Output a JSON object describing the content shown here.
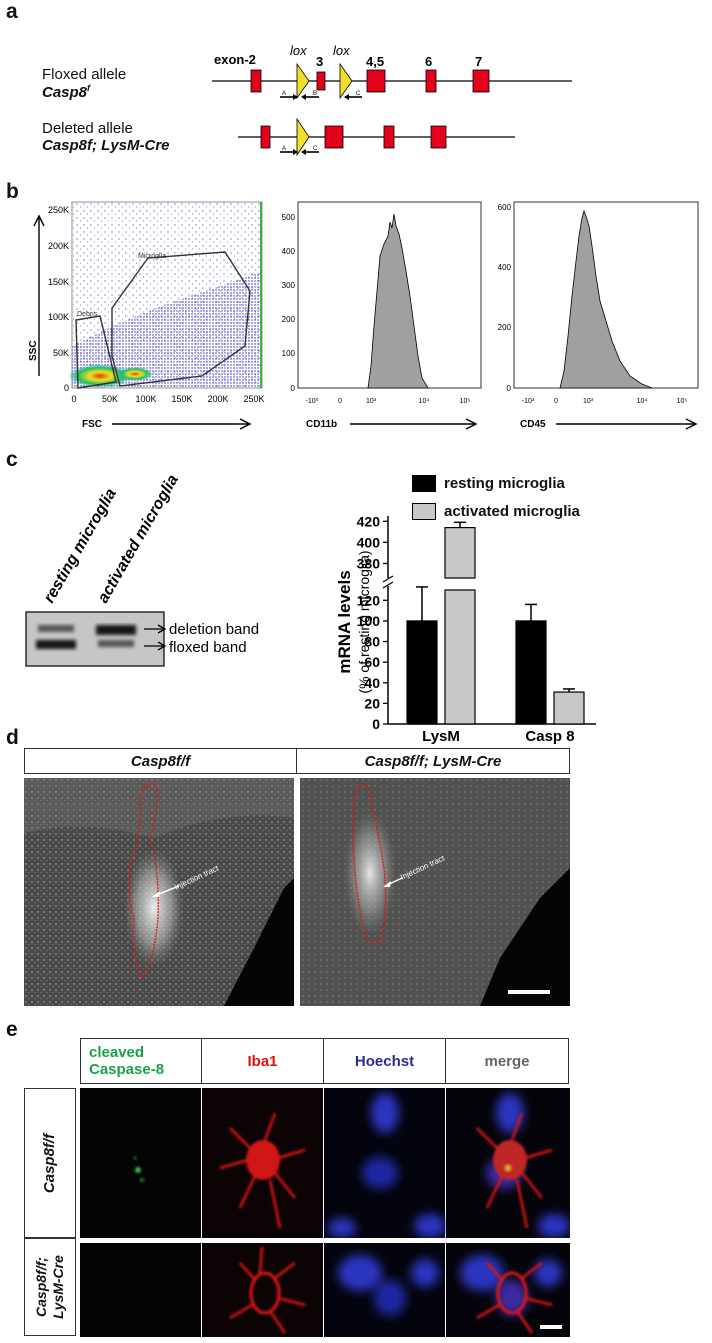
{
  "panels": [
    "a",
    "b",
    "c",
    "d",
    "e"
  ],
  "panel_a": {
    "floxed_label_line1": "Floxed allele",
    "floxed_label_line2": "Casp8",
    "floxed_label_sup": "f",
    "deleted_label_line1": "Deleted allele",
    "deleted_label_line2": "Casp8f; LysM-Cre",
    "exon2": "exon-2",
    "lox1": "lox",
    "lox2": "lox",
    "exon3": "3",
    "exon45": "4,5",
    "exon6": "6",
    "exon7": "7",
    "primer_a": "A",
    "primer_b": "B",
    "primer_c": "C",
    "primer_a2": "A",
    "primer_c2": "C"
  },
  "panel_b": {
    "scatter": {
      "ylabel": "SSC",
      "xlabel": "FSC",
      "yticks": [
        "0",
        "50K",
        "100K",
        "150K",
        "200K",
        "250K"
      ],
      "xticks": [
        "0",
        "50K",
        "100K",
        "150K",
        "200K",
        "250K"
      ],
      "gate_microglia": "Microglia",
      "gate_debris": "Debris"
    },
    "hist1": {
      "xlabel": "CD11b",
      "yticks": [
        "0",
        "100",
        "200",
        "300",
        "400",
        "500"
      ],
      "xticks": [
        "-10⁰",
        "0",
        "10³",
        "10⁴",
        "10⁵"
      ]
    },
    "hist2": {
      "xlabel": "CD45",
      "yticks": [
        "0",
        "200",
        "400",
        "600"
      ],
      "xticks": [
        "-10³",
        "0",
        "10³",
        "10⁴",
        "10⁵"
      ]
    }
  },
  "panel_c": {
    "lane1": "resting microglia",
    "lane2": "activated microglia",
    "band1": "deletion band",
    "band2": "floxed band",
    "legend_resting": "resting microglia",
    "legend_activated": "activated microglia",
    "ylabel_main": "mRNA levels",
    "ylabel_sub": "(% of resting microglia)"
  },
  "chart_data": {
    "type": "bar",
    "categories": [
      "LysM",
      "Casp 8"
    ],
    "series": [
      {
        "name": "resting microglia",
        "values": [
          100,
          100
        ],
        "errors": [
          33,
          16
        ],
        "color": "#000000"
      },
      {
        "name": "activated microglia",
        "values": [
          414,
          31
        ],
        "errors": [
          5,
          3
        ],
        "color": "#c8c8c8"
      }
    ],
    "yticks_lower": [
      "0",
      "20",
      "40",
      "60",
      "80",
      "100",
      "120"
    ],
    "yticks_upper": [
      "380",
      "400",
      "420"
    ],
    "ylim_lower": [
      0,
      130
    ],
    "ylim_upper": [
      370,
      425
    ],
    "axis_break": true
  },
  "panel_d": {
    "header_left": "Casp8f/f",
    "header_right": "Casp8f/f; LysM-Cre",
    "annot_left": "Injection tract",
    "annot_right": "Injection tract"
  },
  "panel_e": {
    "col1_line1": "cleaved",
    "col1_line2": "Caspase-8",
    "col2": "Iba1",
    "col3": "Hoechst",
    "col4": "merge",
    "row1": "Casp8f/f",
    "row2_line1": "Casp8f/f;",
    "row2_line2": "LysM-Cre",
    "colors": {
      "green": "#1aa04a",
      "red": "#e01010",
      "blue": "#2a2a9a",
      "gray": "#666666"
    }
  }
}
